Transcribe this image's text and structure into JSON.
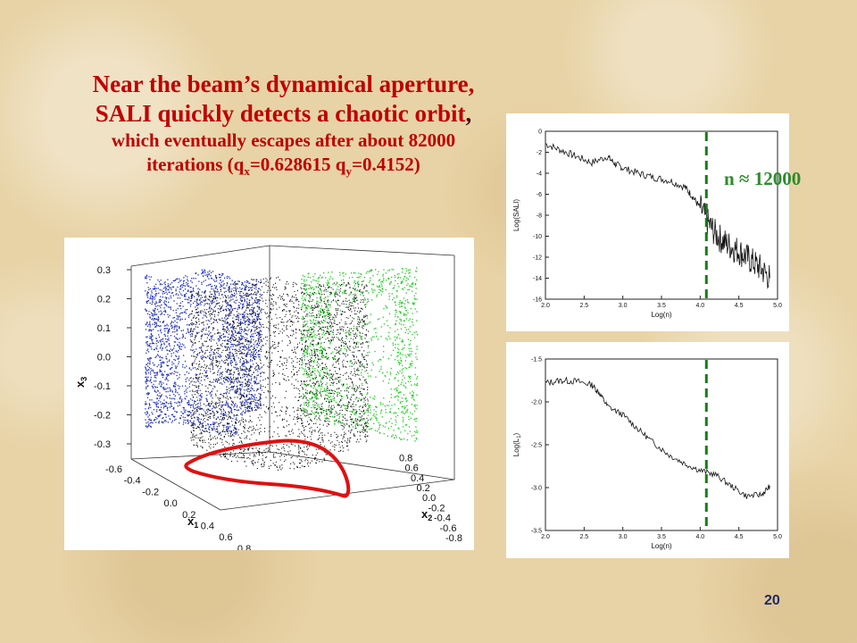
{
  "title": {
    "line1": "Near the beam’s dynamical aperture,",
    "line2": "SALI quickly detects a chaotic orbit",
    "line2_tail": ",",
    "line3": "which eventually escapes after about 82000",
    "line4_pre": "iterations (q",
    "qx_sub": "x",
    "qx_val": "=0.628615 q",
    "qy_sub": "y",
    "qy_val": "=0.4152)"
  },
  "annotation": "n ≈ 12000",
  "page_number": "20",
  "colors": {
    "title_red": "#c00000",
    "annotation_green": "#2e8b2e",
    "blue_projection": "#2030c8",
    "green_projection": "#18d018",
    "red_projection": "#e01010"
  },
  "chart_data": [
    {
      "type": "scatter",
      "kind": "3d-projection",
      "x1_ticks": [
        "-0.6",
        "-0.4",
        "-0.2",
        "0.0",
        "0.2",
        "0.4",
        "0.6",
        "0.8"
      ],
      "x2_ticks": [
        "-0.8",
        "-0.6",
        "-0.4",
        "-0.2",
        "0.0",
        "0.2",
        "0.4",
        "0.6",
        "0.8"
      ],
      "x3_ticks": [
        "-0.3",
        "-0.2",
        "-0.1",
        "0.0",
        "0.1",
        "0.2",
        "0.3"
      ],
      "xlabel_main": "x",
      "xlabel_sub": "1",
      "ylabel_main": "x",
      "ylabel_sub": "2",
      "zlabel_main": "x",
      "zlabel_sub": "3",
      "series_colors": [
        "black",
        "blue",
        "green",
        "red"
      ]
    },
    {
      "type": "line",
      "xlabel": "Log(n)",
      "ylabel": "Log(SALI)",
      "xlim": [
        2.0,
        5.0
      ],
      "ylim": [
        -16,
        0
      ],
      "xticks": [
        "2.0",
        "2.5",
        "3.0",
        "3.5",
        "4.0",
        "4.5",
        "5.0"
      ],
      "yticks": [
        "0",
        "-2",
        "-4",
        "-6",
        "-8",
        "-10",
        "-12",
        "-14",
        "-16"
      ],
      "marker_x": 4.08,
      "x": [
        2.0,
        2.2,
        2.4,
        2.6,
        2.8,
        2.9,
        3.0,
        3.2,
        3.4,
        3.6,
        3.8,
        3.9,
        4.0,
        4.1,
        4.2,
        4.3,
        4.4,
        4.5,
        4.6,
        4.7,
        4.8,
        4.9
      ],
      "y": [
        -1.2,
        -1.8,
        -2.4,
        -3.0,
        -2.4,
        -3.1,
        -3.5,
        -4.0,
        -4.4,
        -4.7,
        -5.3,
        -6.2,
        -7.3,
        -8.7,
        -9.8,
        -10.5,
        -11.0,
        -11.4,
        -12.0,
        -12.6,
        -13.2,
        -14.0
      ]
    },
    {
      "type": "line",
      "xlabel": "Log(n)",
      "ylabel_main": "Log(L",
      "ylabel_sub": "1",
      "ylabel_tail": ")",
      "xlim": [
        2.0,
        5.0
      ],
      "ylim": [
        -3.5,
        -1.5
      ],
      "xticks": [
        "2.0",
        "2.5",
        "3.0",
        "3.5",
        "4.0",
        "4.5",
        "5.0"
      ],
      "yticks": [
        "-1.5",
        "-2.0",
        "-2.5",
        "-3.0",
        "-3.5"
      ],
      "marker_x": 4.08,
      "x": [
        2.0,
        2.2,
        2.4,
        2.6,
        2.7,
        2.8,
        3.0,
        3.2,
        3.4,
        3.6,
        3.8,
        4.0,
        4.2,
        4.4,
        4.6,
        4.8,
        4.9
      ],
      "y": [
        -1.78,
        -1.75,
        -1.76,
        -1.8,
        -1.9,
        -2.05,
        -2.15,
        -2.32,
        -2.48,
        -2.62,
        -2.72,
        -2.8,
        -2.85,
        -2.98,
        -3.1,
        -3.08,
        -2.98
      ]
    }
  ]
}
